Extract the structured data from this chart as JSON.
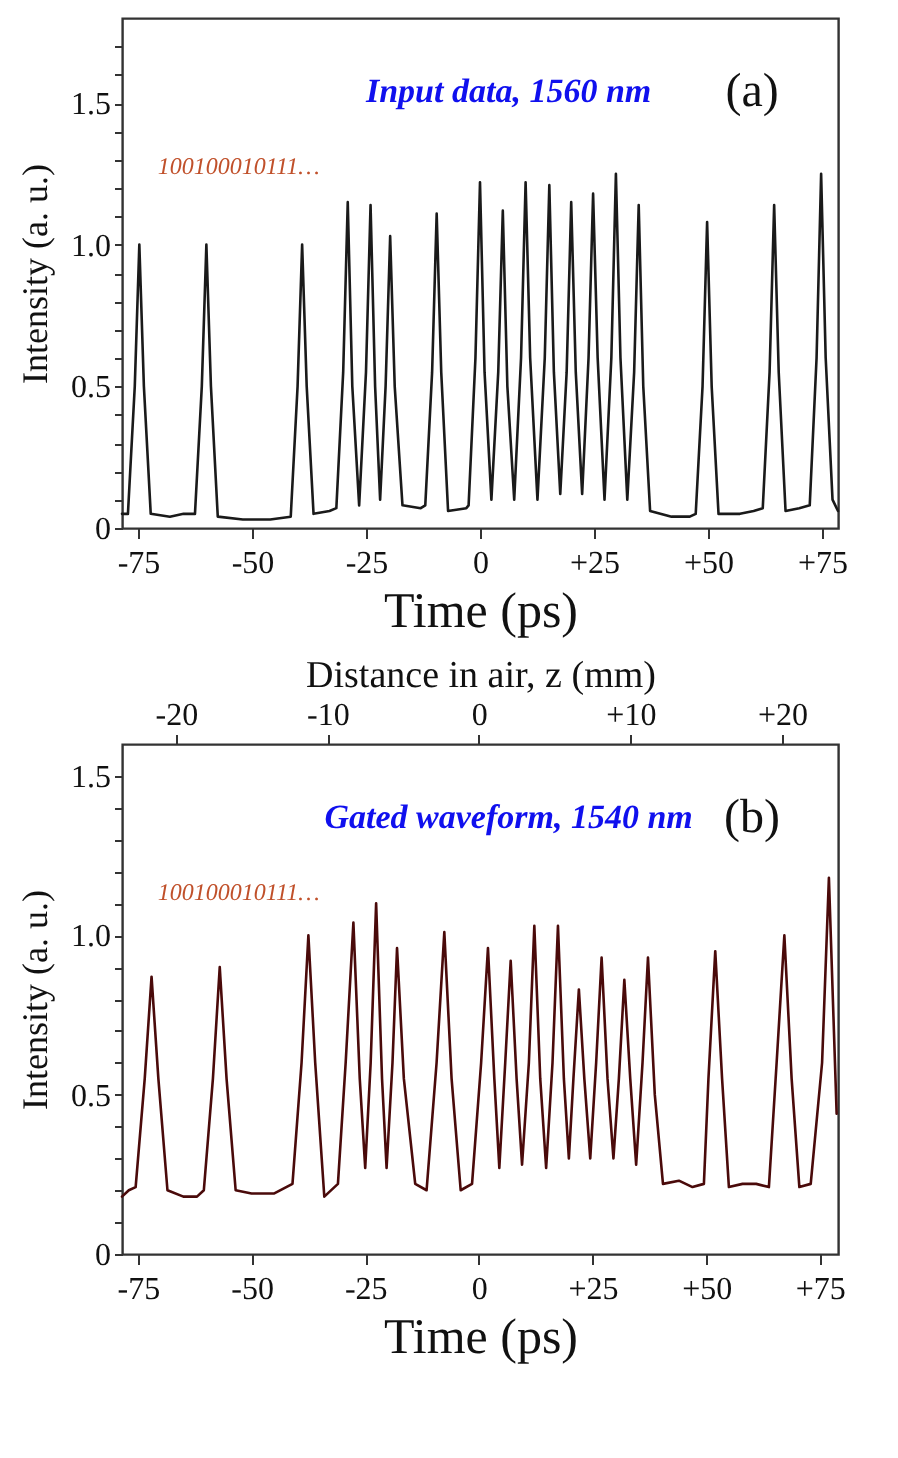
{
  "chart_data": [
    {
      "type": "line",
      "xlabel": "Time (ps)",
      "ylabel": "Intensity (a. u.)",
      "annotations": [
        "Input data, 1560 nm",
        "100100010111…",
        "(a)"
      ],
      "xlim": [
        -78.5,
        78.5
      ],
      "ylim": [
        0,
        1.8
      ],
      "xticks": [
        -75,
        -50,
        -25,
        0,
        {
          "value": 25,
          "label": "+25"
        },
        {
          "value": 50,
          "label": "+50"
        },
        {
          "value": 75,
          "label": "+75"
        }
      ],
      "yticks": [
        0,
        {
          "value": 0.1,
          "label": null
        },
        {
          "value": 0.2,
          "label": null
        },
        {
          "value": 0.3,
          "label": null
        },
        {
          "value": 0.4,
          "label": null
        },
        0.5,
        {
          "value": 0.6,
          "label": null
        },
        {
          "value": 0.7,
          "label": null
        },
        {
          "value": 0.8,
          "label": null
        },
        {
          "value": 0.9,
          "label": null
        },
        {
          "value": 1,
          "label": "1.0"
        },
        {
          "value": 1.1,
          "label": null
        },
        {
          "value": 1.2,
          "label": null
        },
        {
          "value": 1.3,
          "label": null
        },
        {
          "value": 1.4,
          "label": null
        },
        1.5,
        {
          "value": 1.6,
          "label": null
        },
        {
          "value": 1.7,
          "label": null
        }
      ],
      "grid": false,
      "marker": "none",
      "line_style": "solid",
      "series": [
        {
          "color": "#1a1a1a",
          "x": [
            -78.5,
            -77.2,
            -75.7,
            -74.7,
            -73.7,
            -72.2,
            -68,
            -65,
            -62.5,
            -61,
            -60,
            -59,
            -57.5,
            -52,
            -46,
            -41.5,
            -40,
            -39,
            -38,
            -36.5,
            -33,
            -31.5,
            -30,
            -29,
            -28,
            -26.5,
            -25,
            -24,
            -23,
            -21.9,
            -20.7,
            -19.7,
            -18.7,
            -17,
            -13,
            -12,
            -10.5,
            -9.5,
            -8.5,
            -7,
            -3,
            -2.5,
            -1,
            0,
            1,
            2.5,
            4,
            5,
            6,
            7.5,
            9,
            10,
            11,
            12.6,
            14.2,
            15.2,
            16.2,
            17.6,
            19,
            20,
            21,
            22.4,
            23.8,
            24.8,
            25.8,
            27.3,
            28.8,
            29.8,
            30.8,
            32.3,
            33.8,
            34.8,
            35.8,
            37.3,
            42,
            46,
            47.3,
            48.8,
            49.8,
            50.8,
            52.3,
            57,
            60,
            62,
            63.5,
            64.5,
            65.5,
            67,
            70,
            72.3,
            73.8,
            74.8,
            75.8,
            77.3,
            78.5
          ],
          "values": [
            0.05,
            0.05,
            0.5,
            1.0,
            0.5,
            0.05,
            0.04,
            0.05,
            0.05,
            0.5,
            1.0,
            0.5,
            0.04,
            0.03,
            0.03,
            0.04,
            0.5,
            1.0,
            0.5,
            0.05,
            0.06,
            0.07,
            0.55,
            1.15,
            0.5,
            0.08,
            0.55,
            1.14,
            0.5,
            0.1,
            0.5,
            1.03,
            0.5,
            0.08,
            0.07,
            0.08,
            0.55,
            1.11,
            0.55,
            0.06,
            0.07,
            0.08,
            0.6,
            1.22,
            0.55,
            0.1,
            0.55,
            1.12,
            0.5,
            0.1,
            0.6,
            1.22,
            0.6,
            0.1,
            0.6,
            1.21,
            0.55,
            0.12,
            0.55,
            1.15,
            0.55,
            0.12,
            0.6,
            1.18,
            0.6,
            0.1,
            0.6,
            1.25,
            0.6,
            0.1,
            0.55,
            1.14,
            0.5,
            0.06,
            0.04,
            0.04,
            0.05,
            0.5,
            1.08,
            0.5,
            0.05,
            0.05,
            0.06,
            0.07,
            0.55,
            1.14,
            0.55,
            0.06,
            0.07,
            0.08,
            0.6,
            1.25,
            0.6,
            0.1,
            0.06
          ]
        }
      ]
    },
    {
      "type": "line",
      "xlabel": "Time (ps)",
      "ylabel": "Intensity (a. u.)",
      "x2label": "Distance in air, z (mm)",
      "annotations": [
        "Gated waveform, 1540 nm",
        "100100010111…",
        "(b)"
      ],
      "xlim": [
        -78.5,
        79
      ],
      "ylim": [
        0,
        1.6
      ],
      "x2lim": [
        -23.55,
        23.7
      ],
      "xticks": [
        -75,
        -50,
        -25,
        0,
        {
          "value": 25,
          "label": "+25"
        },
        {
          "value": 50,
          "label": "+50"
        },
        {
          "value": 75,
          "label": "+75"
        }
      ],
      "x2ticks": [
        -20,
        -10,
        0,
        {
          "value": 10,
          "label": "+10"
        },
        {
          "value": 20,
          "label": "+20"
        }
      ],
      "yticks": [
        0,
        {
          "value": 0.1,
          "label": null
        },
        {
          "value": 0.2,
          "label": null
        },
        {
          "value": 0.3,
          "label": null
        },
        {
          "value": 0.4,
          "label": null
        },
        0.5,
        {
          "value": 0.6,
          "label": null
        },
        {
          "value": 0.7,
          "label": null
        },
        {
          "value": 0.8,
          "label": null
        },
        {
          "value": 0.9,
          "label": null
        },
        {
          "value": 1,
          "label": "1.0"
        },
        {
          "value": 1.1,
          "label": null
        },
        {
          "value": 1.2,
          "label": null
        },
        {
          "value": 1.3,
          "label": null
        },
        {
          "value": 1.4,
          "label": null
        },
        1.5
      ],
      "grid": false,
      "marker": "none",
      "line_style": "solid",
      "series": [
        {
          "color": "#4a0a0a",
          "x": [
            -78.5,
            -77,
            -75.5,
            -73.5,
            -72,
            -70.5,
            -68.5,
            -65,
            -62,
            -60.5,
            -58.5,
            -57,
            -55.5,
            -53.5,
            -50,
            -45,
            -41,
            -39,
            -37.5,
            -36,
            -34,
            -31,
            -29.3,
            -27.6,
            -26.2,
            -25,
            -23.8,
            -22.6,
            -21.3,
            -20.3,
            -19,
            -18,
            -16.5,
            -14,
            -11.5,
            -9.3,
            -7.6,
            -6,
            -4,
            -1.5,
            0.5,
            2,
            3.4,
            4.5,
            5.8,
            7,
            8.3,
            9.5,
            11,
            12.2,
            13.5,
            14.8,
            16.2,
            17.4,
            18.7,
            19.8,
            20.8,
            22,
            23.2,
            24.5,
            25.8,
            27,
            28.3,
            29.6,
            30.8,
            32,
            33.3,
            34.6,
            36,
            37.2,
            38.7,
            40.5,
            44,
            47,
            49.5,
            50.5,
            52,
            53.5,
            55,
            58,
            61,
            63.8,
            65.5,
            67.2,
            68.8,
            70.5,
            73,
            75.5,
            77,
            78.7
          ],
          "values": [
            0.18,
            0.2,
            0.21,
            0.55,
            0.87,
            0.55,
            0.2,
            0.18,
            0.18,
            0.2,
            0.55,
            0.9,
            0.55,
            0.2,
            0.19,
            0.19,
            0.22,
            0.6,
            1.0,
            0.6,
            0.18,
            0.22,
            0.6,
            1.04,
            0.55,
            0.27,
            0.6,
            1.1,
            0.55,
            0.27,
            0.6,
            0.96,
            0.55,
            0.22,
            0.2,
            0.6,
            1.01,
            0.55,
            0.2,
            0.22,
            0.6,
            0.96,
            0.55,
            0.27,
            0.6,
            0.92,
            0.55,
            0.28,
            0.6,
            1.03,
            0.55,
            0.27,
            0.6,
            1.03,
            0.55,
            0.3,
            0.55,
            0.83,
            0.55,
            0.3,
            0.6,
            0.93,
            0.55,
            0.3,
            0.55,
            0.86,
            0.55,
            0.28,
            0.6,
            0.93,
            0.5,
            0.22,
            0.23,
            0.21,
            0.22,
            0.55,
            0.95,
            0.55,
            0.21,
            0.22,
            0.22,
            0.21,
            0.6,
            1.0,
            0.55,
            0.21,
            0.22,
            0.6,
            1.18,
            0.44
          ]
        }
      ]
    }
  ]
}
